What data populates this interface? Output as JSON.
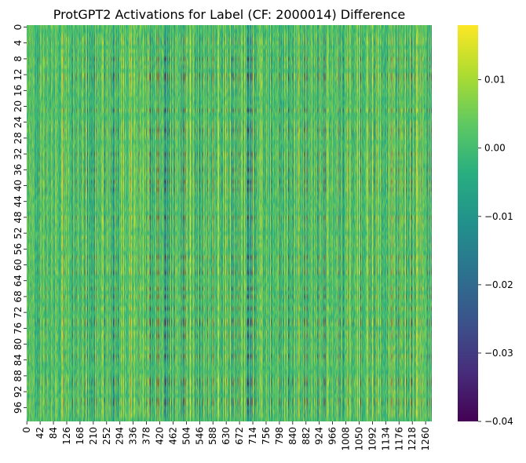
{
  "chart_data": {
    "type": "heatmap",
    "title": "ProtGPT2 Activations for Label (CF: 2000014) Difference",
    "xlabel": "",
    "ylabel": "",
    "n_rows": 100,
    "n_cols": 1280,
    "x_tick_labels": [
      "0",
      "42",
      "84",
      "126",
      "168",
      "210",
      "252",
      "294",
      "336",
      "378",
      "420",
      "462",
      "504",
      "546",
      "588",
      "630",
      "672",
      "714",
      "756",
      "798",
      "840",
      "882",
      "924",
      "966",
      "1008",
      "1050",
      "1092",
      "1134",
      "1176",
      "1218",
      "1260"
    ],
    "y_tick_labels": [
      "0",
      "4",
      "8",
      "12",
      "16",
      "20",
      "24",
      "28",
      "32",
      "36",
      "40",
      "44",
      "48",
      "52",
      "56",
      "60",
      "64",
      "68",
      "72",
      "76",
      "80",
      "84",
      "88",
      "92",
      "96"
    ],
    "colorbar": {
      "colormap": "viridis",
      "min": -0.04,
      "max": 0.018,
      "tick_values": [
        0.01,
        0.0,
        -0.01,
        -0.02,
        -0.03,
        -0.04
      ],
      "tick_labels": [
        "0.01",
        "0.00",
        "−0.01",
        "−0.02",
        "−0.03",
        "−0.04"
      ]
    },
    "notes_visible": "",
    "grid": false,
    "legend": "colorbar-right"
  }
}
